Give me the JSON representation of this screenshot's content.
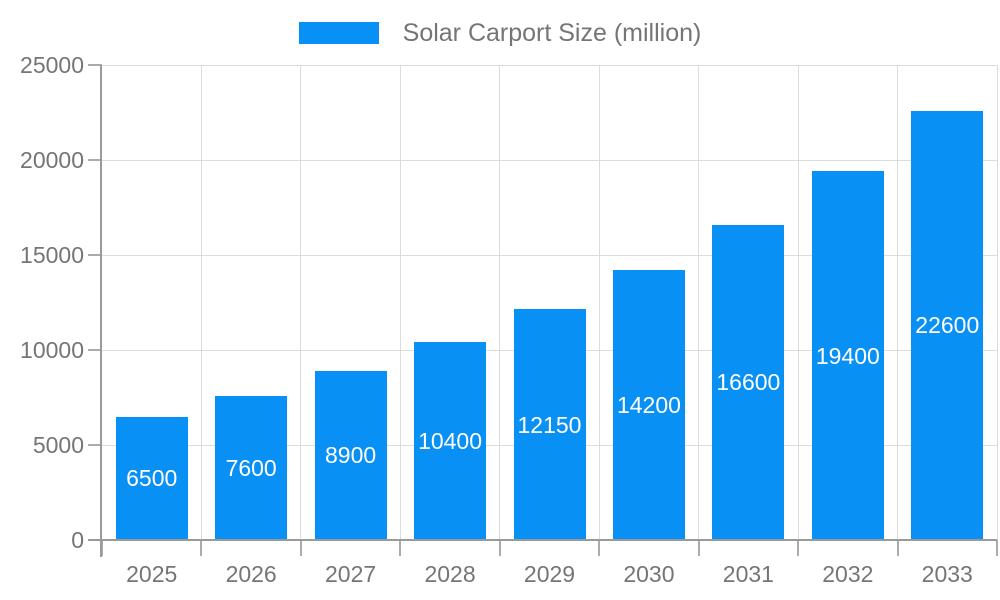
{
  "chart_data": {
    "type": "bar",
    "title": "Solar Carport Size (million)",
    "legend": {
      "label": "Solar Carport Size (million)",
      "position": "top"
    },
    "categories": [
      "2025",
      "2026",
      "2027",
      "2028",
      "2029",
      "2030",
      "2031",
      "2032",
      "2033"
    ],
    "values": [
      6500,
      7600,
      8900,
      10400,
      12150,
      14200,
      16600,
      19400,
      22600
    ],
    "xlabel": "",
    "ylabel": "",
    "ylim": [
      0,
      25000
    ],
    "y_ticks": [
      0,
      5000,
      10000,
      15000,
      20000,
      25000
    ],
    "grid": true,
    "value_labels": "inside-center",
    "colors": {
      "bar": "#0990f5",
      "value_label": "#ffffff",
      "axis_text": "#757575",
      "title": "#757575"
    }
  }
}
